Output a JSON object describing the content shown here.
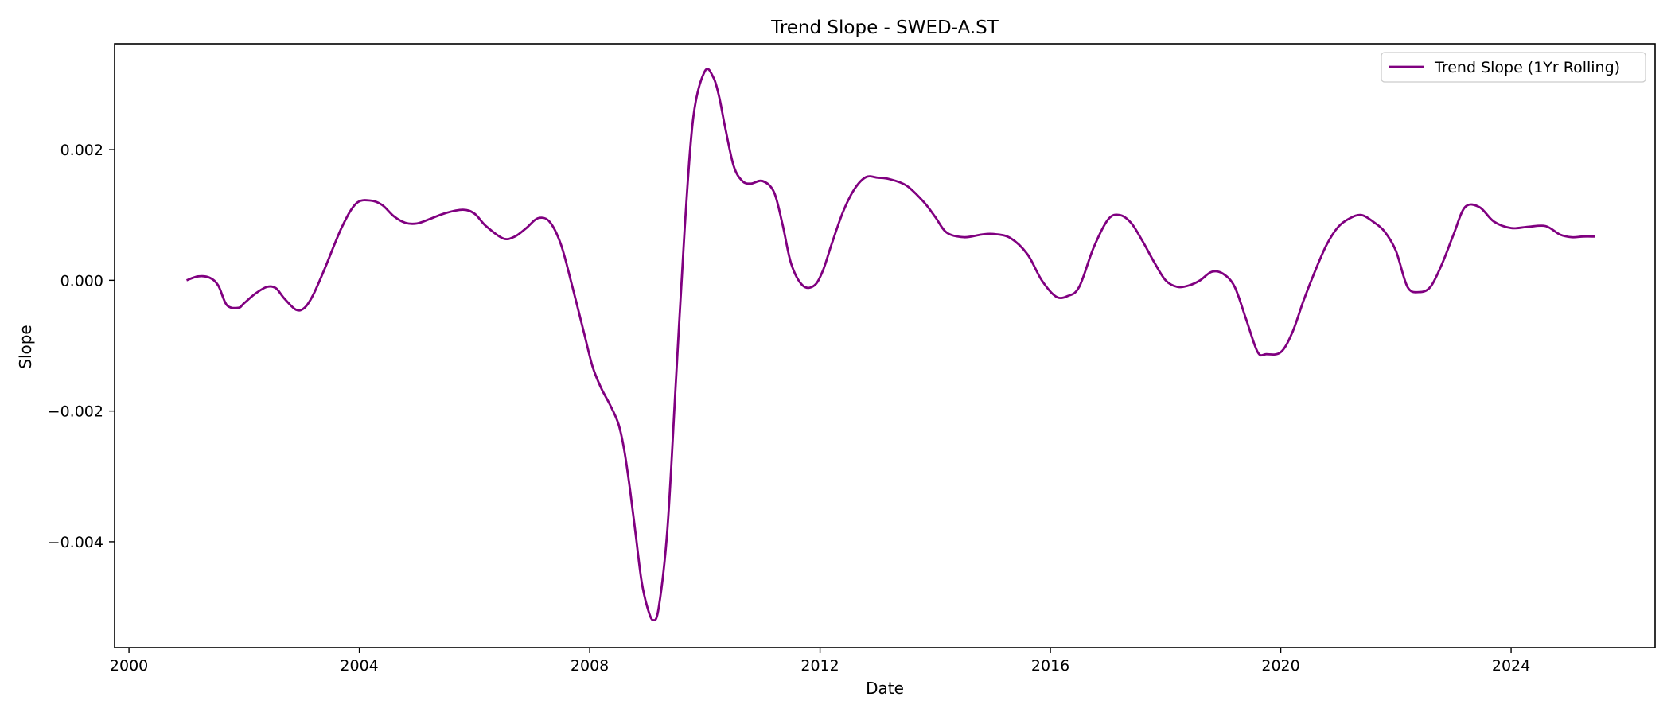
{
  "chart_data": {
    "type": "line",
    "title": "Trend Slope - SWED-A.ST",
    "xlabel": "Date",
    "ylabel": "Slope",
    "xlim": [
      1999.75,
      2026.5
    ],
    "ylim": [
      -0.00562,
      0.00362
    ],
    "x_ticks": [
      2000,
      2004,
      2008,
      2012,
      2016,
      2020,
      2024
    ],
    "x_tick_labels": [
      "2000",
      "2004",
      "2008",
      "2012",
      "2016",
      "2020",
      "2024"
    ],
    "y_ticks": [
      0.002,
      0.0,
      -0.002,
      -0.004
    ],
    "y_tick_labels": [
      "0.002",
      "0.000",
      "−0.002",
      "−0.004"
    ],
    "grid": false,
    "legend_position": "top-right",
    "series": [
      {
        "name": "Trend Slope (1Yr Rolling)",
        "color": "#800080",
        "x": [
          2001.0,
          2001.2,
          2001.4,
          2001.55,
          2001.7,
          2001.9,
          2002.0,
          2002.2,
          2002.4,
          2002.55,
          2002.7,
          2002.9,
          2003.05,
          2003.2,
          2003.4,
          2003.7,
          2003.95,
          2004.2,
          2004.4,
          2004.6,
          2004.8,
          2005.0,
          2005.2,
          2005.5,
          2005.8,
          2006.0,
          2006.2,
          2006.5,
          2006.7,
          2006.9,
          2007.1,
          2007.3,
          2007.5,
          2007.7,
          2007.9,
          2008.05,
          2008.2,
          2008.35,
          2008.5,
          2008.6,
          2008.7,
          2008.8,
          2008.9,
          2009.0,
          2009.1,
          2009.2,
          2009.35,
          2009.5,
          2009.65,
          2009.8,
          2010.0,
          2010.15,
          2010.25,
          2010.35,
          2010.5,
          2010.65,
          2010.8,
          2011.0,
          2011.2,
          2011.35,
          2011.5,
          2011.7,
          2011.9,
          2012.05,
          2012.2,
          2012.4,
          2012.6,
          2012.8,
          2013.0,
          2013.2,
          2013.5,
          2013.8,
          2014.0,
          2014.2,
          2014.5,
          2014.8,
          2015.0,
          2015.3,
          2015.6,
          2015.85,
          2016.1,
          2016.3,
          2016.5,
          2016.75,
          2017.0,
          2017.2,
          2017.4,
          2017.6,
          2017.8,
          2018.0,
          2018.2,
          2018.4,
          2018.6,
          2018.8,
          2019.0,
          2019.2,
          2019.4,
          2019.6,
          2019.75,
          2020.0,
          2020.2,
          2020.4,
          2020.6,
          2020.8,
          2021.0,
          2021.2,
          2021.4,
          2021.6,
          2021.8,
          2022.0,
          2022.2,
          2022.4,
          2022.6,
          2022.8,
          2023.0,
          2023.2,
          2023.45,
          2023.7,
          2024.0,
          2024.3,
          2024.6,
          2024.85,
          2025.05,
          2025.25,
          2025.45
        ],
        "y": [
          0.0,
          6e-05,
          4e-05,
          -8e-05,
          -0.00038,
          -0.00042,
          -0.00035,
          -0.0002,
          -0.0001,
          -0.00012,
          -0.00028,
          -0.00045,
          -0.00042,
          -0.00022,
          0.00018,
          0.00082,
          0.00118,
          0.00122,
          0.00115,
          0.00098,
          0.00088,
          0.00087,
          0.00093,
          0.00103,
          0.00108,
          0.00102,
          0.00083,
          0.00064,
          0.00067,
          0.0008,
          0.00095,
          0.0009,
          0.00055,
          -0.0001,
          -0.0008,
          -0.00132,
          -0.00165,
          -0.0019,
          -0.0022,
          -0.0026,
          -0.0032,
          -0.0039,
          -0.0046,
          -0.005,
          -0.0052,
          -0.005,
          -0.0038,
          -0.0015,
          0.0008,
          0.0025,
          0.0032,
          0.0031,
          0.0028,
          0.00235,
          0.00175,
          0.00152,
          0.00148,
          0.00152,
          0.00135,
          0.00085,
          0.00025,
          -8e-05,
          -8e-05,
          0.00015,
          0.00055,
          0.00105,
          0.0014,
          0.00158,
          0.00157,
          0.00155,
          0.00145,
          0.0012,
          0.00097,
          0.00073,
          0.00066,
          0.0007,
          0.00071,
          0.00065,
          0.0004,
          0.0,
          -0.00025,
          -0.00024,
          -0.0001,
          0.0005,
          0.00093,
          0.001,
          0.00088,
          0.0006,
          0.00028,
          0.0,
          -0.0001,
          -8e-05,
          0.0,
          0.00013,
          0.0001,
          -0.0001,
          -0.0006,
          -0.0011,
          -0.00113,
          -0.0011,
          -0.0008,
          -0.0003,
          0.00015,
          0.00055,
          0.00082,
          0.00095,
          0.001,
          0.0009,
          0.00075,
          0.00045,
          -0.0001,
          -0.00018,
          -0.0001,
          0.00025,
          0.0007,
          0.00112,
          0.00112,
          0.0009,
          0.0008,
          0.00082,
          0.00083,
          0.0007,
          0.00066,
          0.00067,
          0.00067
        ]
      }
    ]
  }
}
